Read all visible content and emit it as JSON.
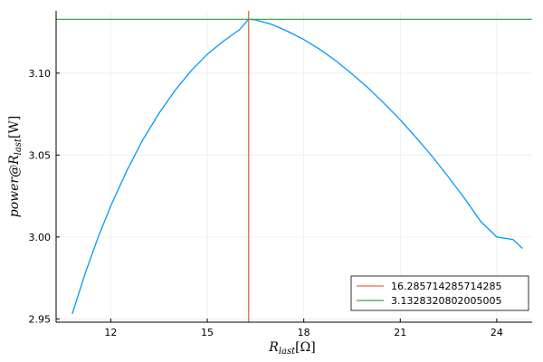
{
  "chart_data": {
    "type": "line",
    "xlabel": "R",
    "xlabel_sub": "last",
    "xlabel_unit": "[Ω]",
    "ylabel": "power@R",
    "ylabel_sub": "last",
    "ylabel_unit": "[W]",
    "xlim": [
      10.3,
      25.1
    ],
    "ylim": [
      2.948,
      3.138
    ],
    "x_ticks": [
      12,
      15,
      18,
      21,
      24
    ],
    "y_ticks": [
      2.95,
      3.0,
      3.05,
      3.1
    ],
    "y_tick_labels": [
      "2.95",
      "3.00",
      "3.05",
      "3.10"
    ],
    "grid": true,
    "legend_position": "bottom-right",
    "colors": {
      "curve": "#009af9",
      "vline": "#e26f46",
      "hline": "#3da44d",
      "axis": "#000000",
      "grid": "#ececec",
      "legend_border": "#000000"
    },
    "curve": {
      "x": [
        10.8,
        11.2,
        11.6,
        12.0,
        12.5,
        13.0,
        13.5,
        14.0,
        14.5,
        15.0,
        15.5,
        16.0,
        16.285714285714285,
        16.5,
        17.0,
        17.5,
        18.0,
        18.5,
        19.0,
        19.5,
        20.0,
        20.5,
        21.0,
        21.5,
        22.0,
        22.5,
        23.0,
        23.5,
        24.0,
        24.5,
        24.8
      ],
      "y": [
        2.953,
        2.9775,
        2.9995,
        3.019,
        3.0405,
        3.0595,
        3.0755,
        3.0895,
        3.1015,
        3.1115,
        3.1195,
        3.1265,
        3.1328320802005005,
        3.1325,
        3.1298,
        3.1255,
        3.1205,
        3.1145,
        3.1075,
        3.0995,
        3.091,
        3.0815,
        3.0715,
        3.0605,
        3.049,
        3.0365,
        3.0235,
        3.0095,
        3.0,
        2.9985,
        2.993
      ]
    },
    "series": [
      {
        "name": "16.285714285714285",
        "kind": "vline",
        "value": 16.285714285714285
      },
      {
        "name": "3.1328320802005005",
        "kind": "hline",
        "value": 3.1328320802005005
      }
    ]
  }
}
